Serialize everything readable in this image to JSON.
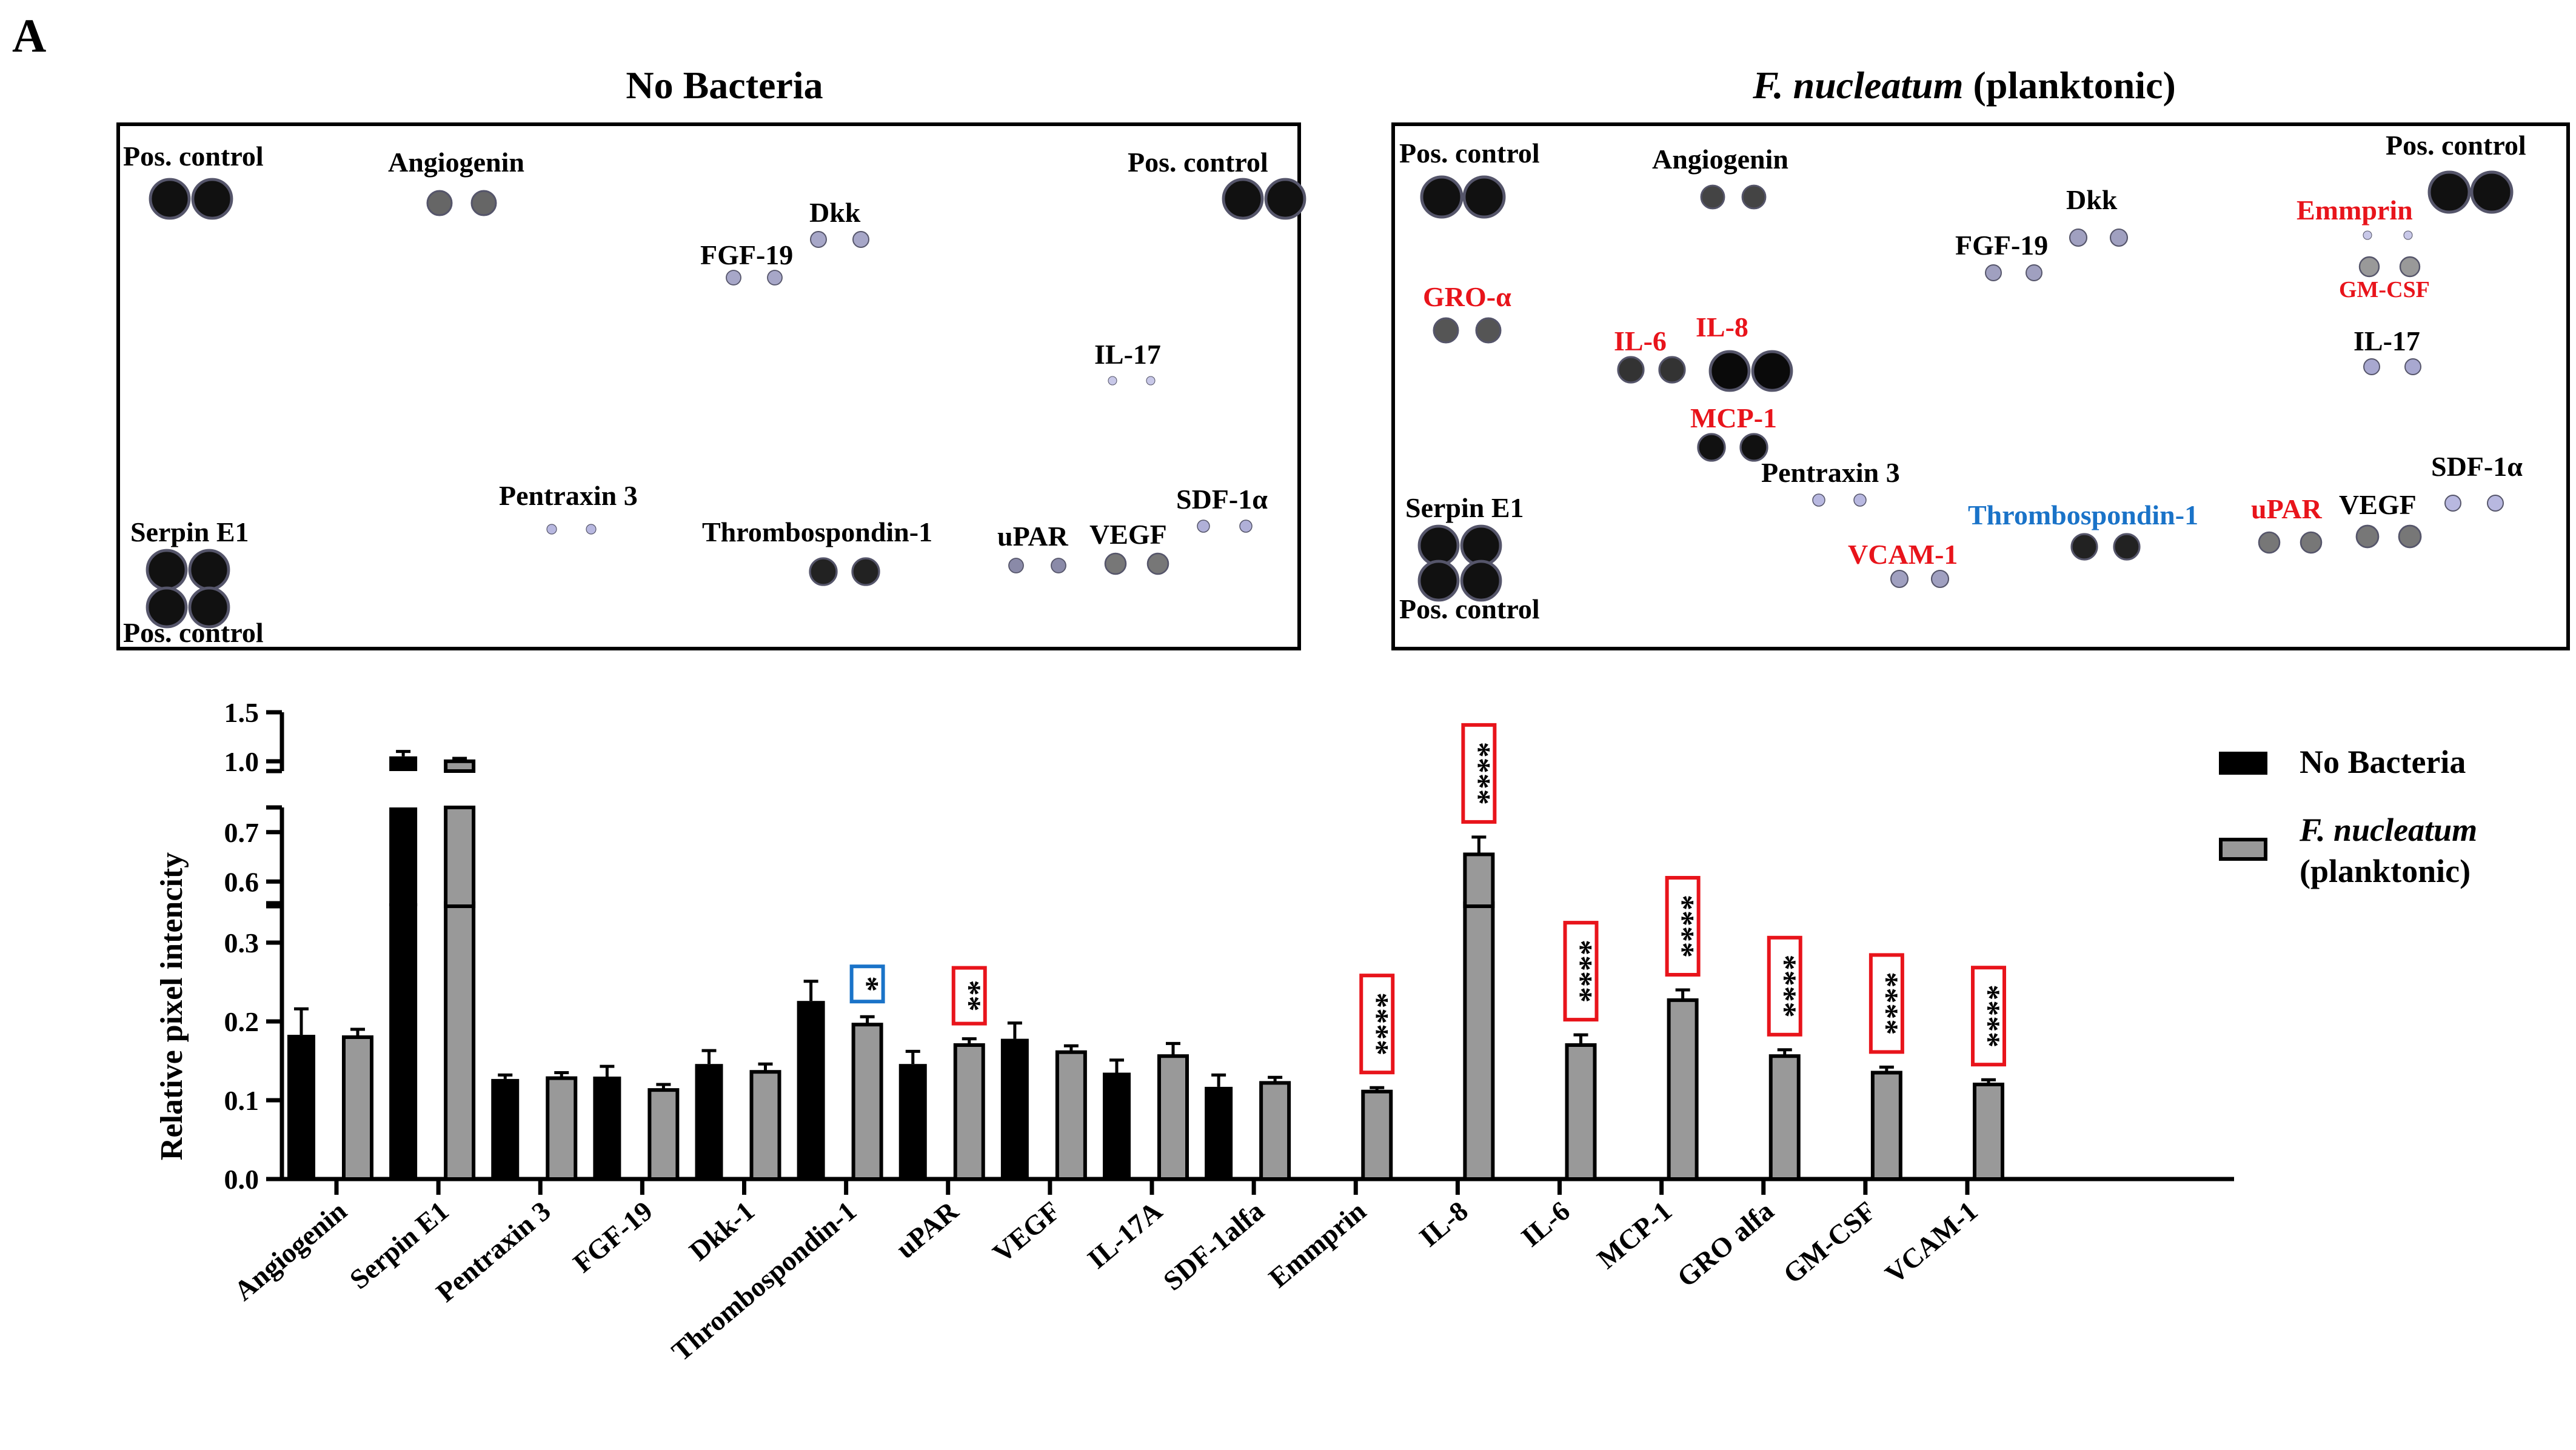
{
  "panel_label": "A",
  "blots": [
    {
      "title_italic": "",
      "title_plain": "No Bacteria",
      "labels": [
        {
          "text": "Pos. control",
          "color": "#000000"
        },
        {
          "text": "Angiogenin",
          "color": "#000000"
        },
        {
          "text": "Dkk",
          "color": "#000000"
        },
        {
          "text": "FGF-19",
          "color": "#000000"
        },
        {
          "text": "Pos. control",
          "color": "#000000"
        },
        {
          "text": "IL-17",
          "color": "#000000"
        },
        {
          "text": "Serpin E1",
          "color": "#000000"
        },
        {
          "text": "Pentraxin 3",
          "color": "#000000"
        },
        {
          "text": "Thrombospondin-1",
          "color": "#000000"
        },
        {
          "text": "uPAR",
          "color": "#000000"
        },
        {
          "text": "VEGF",
          "color": "#000000"
        },
        {
          "text": "SDF-1α",
          "color": "#000000"
        },
        {
          "text": "Pos. control",
          "color": "#000000"
        }
      ]
    },
    {
      "title_italic": "F. nucleatum",
      "title_plain": " (planktonic)",
      "labels": [
        {
          "text": "Pos. control",
          "color": "#000000"
        },
        {
          "text": "Angiogenin",
          "color": "#000000"
        },
        {
          "text": "Pos. control",
          "color": "#000000"
        },
        {
          "text": "Dkk",
          "color": "#000000"
        },
        {
          "text": "Emmprin",
          "color": "#e8141b"
        },
        {
          "text": "FGF-19",
          "color": "#000000"
        },
        {
          "text": "GM-CSF",
          "color": "#e8141b"
        },
        {
          "text": "GRO-α",
          "color": "#e8141b"
        },
        {
          "text": "IL-6",
          "color": "#e8141b"
        },
        {
          "text": "IL-8",
          "color": "#e8141b"
        },
        {
          "text": "IL-17",
          "color": "#000000"
        },
        {
          "text": "MCP-1",
          "color": "#e8141b"
        },
        {
          "text": "Pentraxin 3",
          "color": "#000000"
        },
        {
          "text": "SDF-1α",
          "color": "#000000"
        },
        {
          "text": "Serpin E1",
          "color": "#000000"
        },
        {
          "text": "Thrombospondin-1",
          "color": "#1a73c8"
        },
        {
          "text": "uPAR",
          "color": "#e8141b"
        },
        {
          "text": "VEGF",
          "color": "#000000"
        },
        {
          "text": "VCAM-1",
          "color": "#e8141b"
        },
        {
          "text": "Pos. control",
          "color": "#000000"
        }
      ]
    }
  ],
  "chart_data": {
    "type": "bar",
    "ylabel": "Relative pixel intencity",
    "y_segments": [
      {
        "range": [
          0.0,
          0.35
        ],
        "ticks": [
          "0.0",
          "0.1",
          "0.2",
          "0.3"
        ]
      },
      {
        "range": [
          0.55,
          0.75
        ],
        "ticks": [
          "0.6",
          "0.7"
        ]
      },
      {
        "range": [
          0.9,
          1.5
        ],
        "ticks": [
          "1.0",
          "1.5"
        ]
      }
    ],
    "categories": [
      "Angiogenin",
      "Serpin E1",
      "Pentraxin 3",
      "FGF-19",
      "Dkk-1",
      "Thrombospondin-1",
      "uPAR",
      "VEGF",
      "IL-17A",
      "SDF-1alfa",
      "Emmprin",
      "IL-8",
      "IL-6",
      "MCP-1",
      "GRO alfa",
      "GM-CSF",
      "VCAM-1"
    ],
    "series": [
      {
        "name": "No Bacteria",
        "color": "#000000",
        "values": [
          0.183,
          1.05,
          0.127,
          0.13,
          0.146,
          0.226,
          0.146,
          0.178,
          0.135,
          0.117,
          null,
          null,
          null,
          null,
          null,
          null,
          null
        ],
        "errors": [
          0.033,
          0.05,
          0.005,
          0.013,
          0.017,
          0.025,
          0.016,
          0.02,
          0.016,
          0.015,
          null,
          null,
          null,
          null,
          null,
          null,
          null
        ]
      },
      {
        "name_italic": "F. nucleatum",
        "name_plain": "(planktonic)",
        "color": "#999999",
        "values": [
          0.18,
          1.0,
          0.128,
          0.113,
          0.136,
          0.196,
          0.17,
          0.161,
          0.156,
          0.122,
          0.111,
          0.655,
          0.17,
          0.227,
          0.156,
          0.135,
          0.12
        ],
        "errors": [
          0.01,
          0.03,
          0.007,
          0.007,
          0.01,
          0.01,
          0.008,
          0.008,
          0.016,
          0.007,
          0.005,
          0.035,
          0.013,
          0.013,
          0.008,
          0.007,
          0.006
        ]
      }
    ],
    "significance": [
      {
        "category": "Thrombospondin-1",
        "label": "*",
        "color": "#1a73c8"
      },
      {
        "category": "uPAR",
        "label": "**",
        "color": "#e8141b"
      },
      {
        "category": "Emmprin",
        "label": "****",
        "color": "#e8141b"
      },
      {
        "category": "IL-8",
        "label": "****",
        "color": "#e8141b"
      },
      {
        "category": "IL-6",
        "label": "****",
        "color": "#e8141b"
      },
      {
        "category": "MCP-1",
        "label": "****",
        "color": "#e8141b"
      },
      {
        "category": "GRO alfa",
        "label": "****",
        "color": "#e8141b"
      },
      {
        "category": "GM-CSF",
        "label": "****",
        "color": "#e8141b"
      },
      {
        "category": "VCAM-1",
        "label": "****",
        "color": "#e8141b"
      }
    ],
    "legend": {
      "position": "top-right"
    }
  }
}
